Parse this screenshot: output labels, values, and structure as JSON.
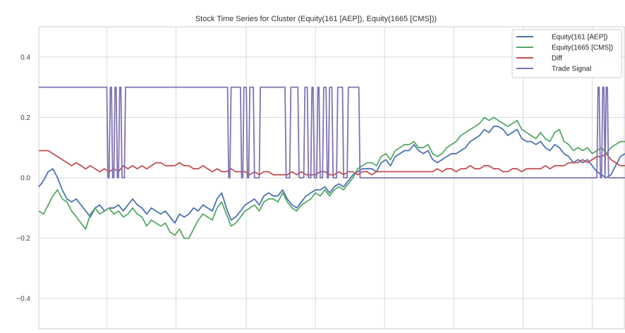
{
  "chart_data": {
    "type": "line",
    "title": "Stock Time Series for Cluster (Equity(161 [AEP]), Equity(1665 [CMS]))",
    "xlabel": "",
    "ylabel": "",
    "xlim": [
      0,
      500
    ],
    "ylim": [
      -0.5,
      0.5
    ],
    "yticks": [
      {
        "value": 0.4,
        "label": "0.4"
      },
      {
        "value": 0.2,
        "label": "0.2"
      },
      {
        "value": 0.0,
        "label": "0.0"
      },
      {
        "value": -0.2,
        "label": "−0.2"
      },
      {
        "value": -0.4,
        "label": "−0.4"
      }
    ],
    "xgrid": [
      0,
      58,
      117,
      177,
      236,
      295,
      354,
      413,
      472
    ],
    "grid": true,
    "legend_position": "top-right",
    "series": [
      {
        "name": "Equity(161 [AEP])",
        "color": "#4c72b0",
        "x": [
          0,
          4,
          8,
          12,
          16,
          20,
          24,
          28,
          32,
          36,
          40,
          44,
          48,
          52,
          56,
          60,
          64,
          68,
          72,
          76,
          80,
          84,
          88,
          92,
          96,
          100,
          104,
          108,
          112,
          116,
          120,
          124,
          128,
          132,
          136,
          140,
          144,
          148,
          152,
          156,
          160,
          164,
          168,
          172,
          176,
          180,
          184,
          188,
          192,
          196,
          200,
          204,
          208,
          212,
          216,
          220,
          224,
          228,
          232,
          236,
          240,
          244,
          248,
          252,
          256,
          260,
          264,
          268,
          272,
          276,
          280,
          284,
          288,
          292,
          296,
          300,
          304,
          308,
          312,
          316,
          320,
          324,
          328,
          332,
          336,
          340,
          344,
          348,
          352,
          356,
          360,
          364,
          368,
          372,
          376,
          380,
          384,
          388,
          392,
          396,
          400,
          404,
          408,
          412,
          416,
          420,
          424,
          428,
          432,
          436,
          440,
          444,
          448,
          452,
          456,
          460,
          464,
          468,
          472,
          476,
          480,
          484,
          488,
          492,
          496,
          500
        ],
        "values": [
          -0.03,
          -0.01,
          0.02,
          0.03,
          0.0,
          -0.04,
          -0.07,
          -0.08,
          -0.07,
          -0.09,
          -0.11,
          -0.13,
          -0.1,
          -0.09,
          -0.11,
          -0.1,
          -0.1,
          -0.09,
          -0.11,
          -0.09,
          -0.07,
          -0.09,
          -0.1,
          -0.12,
          -0.1,
          -0.11,
          -0.12,
          -0.11,
          -0.13,
          -0.15,
          -0.12,
          -0.13,
          -0.12,
          -0.1,
          -0.11,
          -0.09,
          -0.1,
          -0.11,
          -0.07,
          -0.05,
          -0.1,
          -0.14,
          -0.13,
          -0.11,
          -0.09,
          -0.08,
          -0.07,
          -0.09,
          -0.06,
          -0.05,
          -0.06,
          -0.06,
          -0.04,
          -0.07,
          -0.09,
          -0.1,
          -0.08,
          -0.06,
          -0.05,
          -0.04,
          -0.04,
          -0.03,
          -0.05,
          -0.03,
          -0.02,
          -0.03,
          -0.01,
          0.01,
          0.02,
          0.03,
          0.03,
          0.03,
          0.02,
          0.05,
          0.06,
          0.04,
          0.07,
          0.08,
          0.09,
          0.09,
          0.11,
          0.09,
          0.08,
          0.09,
          0.06,
          0.05,
          0.06,
          0.07,
          0.08,
          0.08,
          0.09,
          0.1,
          0.12,
          0.13,
          0.14,
          0.16,
          0.15,
          0.17,
          0.17,
          0.16,
          0.14,
          0.15,
          0.16,
          0.13,
          0.12,
          0.12,
          0.11,
          0.12,
          0.1,
          0.09,
          0.11,
          0.1,
          0.08,
          0.07,
          0.05,
          0.06,
          0.05,
          0.06,
          0.04,
          0.02,
          0.01,
          0.0,
          0.01,
          0.04,
          0.07,
          0.08
        ]
      },
      {
        "name": "Equity(1665 [CMS])",
        "color": "#55a868",
        "x": [
          0,
          4,
          8,
          12,
          16,
          20,
          24,
          28,
          32,
          36,
          40,
          44,
          48,
          52,
          56,
          60,
          64,
          68,
          72,
          76,
          80,
          84,
          88,
          92,
          96,
          100,
          104,
          108,
          112,
          116,
          120,
          124,
          128,
          132,
          136,
          140,
          144,
          148,
          152,
          156,
          160,
          164,
          168,
          172,
          176,
          180,
          184,
          188,
          192,
          196,
          200,
          204,
          208,
          212,
          216,
          220,
          224,
          228,
          232,
          236,
          240,
          244,
          248,
          252,
          256,
          260,
          264,
          268,
          272,
          276,
          280,
          284,
          288,
          292,
          296,
          300,
          304,
          308,
          312,
          316,
          320,
          324,
          328,
          332,
          336,
          340,
          344,
          348,
          352,
          356,
          360,
          364,
          368,
          372,
          376,
          380,
          384,
          388,
          392,
          396,
          400,
          404,
          408,
          412,
          416,
          420,
          424,
          428,
          432,
          436,
          440,
          444,
          448,
          452,
          456,
          460,
          464,
          468,
          472,
          476,
          480,
          484,
          488,
          492,
          496,
          500
        ],
        "values": [
          -0.11,
          -0.12,
          -0.09,
          -0.06,
          -0.04,
          -0.07,
          -0.08,
          -0.11,
          -0.13,
          -0.15,
          -0.17,
          -0.12,
          -0.1,
          -0.12,
          -0.11,
          -0.1,
          -0.12,
          -0.11,
          -0.13,
          -0.12,
          -0.1,
          -0.12,
          -0.13,
          -0.16,
          -0.14,
          -0.15,
          -0.16,
          -0.15,
          -0.18,
          -0.19,
          -0.17,
          -0.2,
          -0.2,
          -0.17,
          -0.14,
          -0.12,
          -0.13,
          -0.14,
          -0.1,
          -0.08,
          -0.12,
          -0.16,
          -0.15,
          -0.13,
          -0.11,
          -0.1,
          -0.09,
          -0.11,
          -0.08,
          -0.07,
          -0.07,
          -0.08,
          -0.05,
          -0.08,
          -0.1,
          -0.11,
          -0.09,
          -0.08,
          -0.07,
          -0.05,
          -0.06,
          -0.04,
          -0.06,
          -0.04,
          -0.03,
          -0.04,
          -0.02,
          0.0,
          0.03,
          0.04,
          0.05,
          0.05,
          0.04,
          0.07,
          0.08,
          0.06,
          0.09,
          0.1,
          0.11,
          0.11,
          0.12,
          0.1,
          0.1,
          0.11,
          0.08,
          0.07,
          0.08,
          0.1,
          0.11,
          0.12,
          0.14,
          0.15,
          0.16,
          0.17,
          0.18,
          0.2,
          0.19,
          0.2,
          0.19,
          0.18,
          0.17,
          0.18,
          0.19,
          0.16,
          0.15,
          0.14,
          0.13,
          0.15,
          0.13,
          0.12,
          0.15,
          0.16,
          0.12,
          0.11,
          0.09,
          0.1,
          0.09,
          0.1,
          0.08,
          0.09,
          0.1,
          0.08,
          0.1,
          0.11,
          0.12,
          0.12
        ]
      },
      {
        "name": "Diff",
        "color": "#c44e52",
        "x": [
          0,
          4,
          8,
          12,
          16,
          20,
          24,
          28,
          32,
          36,
          40,
          44,
          48,
          52,
          56,
          60,
          64,
          68,
          72,
          76,
          80,
          84,
          88,
          92,
          96,
          100,
          104,
          108,
          112,
          116,
          120,
          124,
          128,
          132,
          136,
          140,
          144,
          148,
          152,
          156,
          160,
          164,
          168,
          172,
          176,
          180,
          184,
          188,
          192,
          196,
          200,
          204,
          208,
          212,
          216,
          220,
          224,
          228,
          232,
          236,
          240,
          244,
          248,
          252,
          256,
          260,
          264,
          268,
          272,
          276,
          280,
          284,
          288,
          292,
          296,
          300,
          304,
          308,
          312,
          316,
          320,
          324,
          328,
          332,
          336,
          340,
          344,
          348,
          352,
          356,
          360,
          364,
          368,
          372,
          376,
          380,
          384,
          388,
          392,
          396,
          400,
          404,
          408,
          412,
          416,
          420,
          424,
          428,
          432,
          436,
          440,
          444,
          448,
          452,
          456,
          460,
          464,
          468,
          472,
          476,
          480,
          484,
          488,
          492,
          496,
          500
        ],
        "values": [
          0.09,
          0.09,
          0.09,
          0.08,
          0.07,
          0.06,
          0.05,
          0.04,
          0.05,
          0.04,
          0.03,
          0.04,
          0.03,
          0.02,
          0.03,
          0.02,
          0.03,
          0.02,
          0.04,
          0.03,
          0.04,
          0.03,
          0.04,
          0.03,
          0.04,
          0.05,
          0.05,
          0.04,
          0.04,
          0.04,
          0.05,
          0.04,
          0.04,
          0.03,
          0.03,
          0.04,
          0.03,
          0.02,
          0.03,
          0.02,
          0.02,
          0.03,
          0.02,
          0.02,
          0.02,
          0.01,
          0.02,
          0.01,
          0.02,
          0.02,
          0.01,
          0.01,
          0.01,
          0.01,
          0.02,
          0.01,
          0.02,
          0.01,
          0.01,
          0.01,
          0.02,
          0.02,
          0.01,
          0.01,
          0.02,
          0.01,
          0.02,
          0.02,
          0.01,
          0.02,
          0.02,
          0.01,
          0.02,
          0.02,
          0.02,
          0.02,
          0.02,
          0.02,
          0.02,
          0.02,
          0.02,
          0.02,
          0.02,
          0.02,
          0.02,
          0.03,
          0.02,
          0.03,
          0.03,
          0.02,
          0.03,
          0.03,
          0.04,
          0.03,
          0.03,
          0.04,
          0.04,
          0.03,
          0.03,
          0.02,
          0.02,
          0.03,
          0.03,
          0.02,
          0.03,
          0.03,
          0.03,
          0.03,
          0.04,
          0.03,
          0.04,
          0.04,
          0.04,
          0.05,
          0.05,
          0.05,
          0.06,
          0.05,
          0.06,
          0.07,
          0.07,
          0.08,
          0.06,
          0.05,
          0.04,
          0.04
        ]
      },
      {
        "name": "Trade Signal",
        "color": "#8172b2",
        "x": [
          0,
          58,
          59,
          60,
          61,
          62,
          63,
          64,
          65,
          66,
          67,
          68,
          69,
          70,
          71,
          72,
          73,
          74,
          75,
          161,
          162,
          163,
          164,
          165,
          166,
          172,
          173,
          174,
          175,
          176,
          177,
          178,
          179,
          180,
          183,
          184,
          185,
          186,
          187,
          188,
          189,
          190,
          191,
          192,
          210,
          211,
          212,
          213,
          214,
          215,
          221,
          222,
          223,
          224,
          225,
          226,
          227,
          228,
          229,
          230,
          231,
          232,
          233,
          234,
          235,
          236,
          237,
          238,
          239,
          240,
          241,
          242,
          243,
          245,
          246,
          247,
          248,
          250,
          251,
          252,
          253,
          254,
          255,
          259,
          260,
          261,
          262,
          263,
          264,
          273,
          274,
          476,
          477,
          478,
          479,
          480,
          481,
          482,
          483,
          484,
          485,
          486,
          487,
          500
        ],
        "values": [
          0.3,
          0.3,
          0.0,
          0.0,
          0.3,
          0.3,
          0.0,
          0.0,
          0.3,
          0.3,
          0.0,
          0.0,
          0.3,
          0.3,
          0.0,
          0.0,
          0.0,
          0.3,
          0.3,
          0.3,
          0.0,
          0.0,
          0.3,
          0.3,
          0.3,
          0.3,
          0.0,
          0.0,
          0.3,
          0.3,
          0.3,
          0.0,
          0.0,
          0.3,
          0.3,
          0.0,
          0.0,
          0.0,
          0.0,
          0.0,
          0.3,
          0.3,
          0.3,
          0.3,
          0.3,
          0.0,
          0.0,
          0.0,
          0.0,
          0.3,
          0.3,
          0.0,
          0.0,
          0.0,
          0.0,
          0.0,
          0.3,
          0.3,
          0.3,
          0.0,
          0.0,
          0.0,
          0.3,
          0.3,
          0.0,
          0.0,
          0.0,
          0.3,
          0.3,
          0.0,
          0.0,
          0.0,
          0.3,
          0.3,
          0.0,
          0.0,
          0.3,
          0.3,
          0.0,
          0.0,
          0.0,
          0.0,
          0.3,
          0.3,
          0.0,
          0.0,
          0.0,
          0.0,
          0.3,
          0.3,
          0.0,
          0.0,
          0.3,
          0.3,
          0.0,
          0.0,
          0.3,
          0.3,
          0.0,
          0.3,
          0.3,
          0.0,
          0.0,
          0.0
        ]
      }
    ]
  }
}
